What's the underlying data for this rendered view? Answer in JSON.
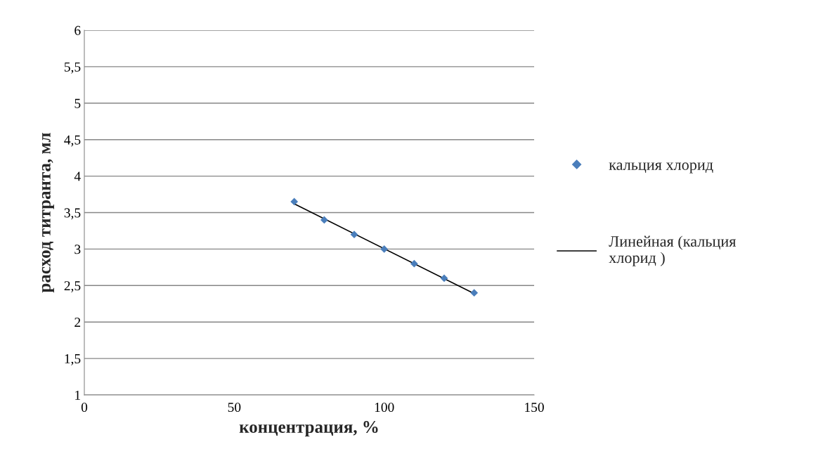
{
  "chart_data": {
    "type": "scatter",
    "xlabel": "концентрация, %",
    "ylabel": "расход титранта, мл",
    "series": [
      {
        "name": "кальция хлорид",
        "color": "#4a7ebb",
        "marker": "diamond",
        "x": [
          70,
          80,
          90,
          100,
          110,
          120,
          130
        ],
        "values": [
          3.65,
          3.4,
          3.2,
          3.0,
          2.8,
          2.6,
          2.4
        ]
      },
      {
        "name": "Линейная (кальция хлорид )",
        "type": "line",
        "color": "#000000",
        "line_style": "solid",
        "x": [
          70,
          130
        ],
        "values": [
          3.62,
          2.39
        ]
      }
    ],
    "xlim": [
      0,
      150
    ],
    "xticks": [
      0,
      50,
      100,
      150
    ],
    "ylim": [
      1,
      6
    ],
    "yticks": [
      {
        "value": 1,
        "label": "1"
      },
      {
        "value": 1.5,
        "label": "1,5"
      },
      {
        "value": 2,
        "label": "2"
      },
      {
        "value": 2.5,
        "label": "2,5"
      },
      {
        "value": 3,
        "label": "3"
      },
      {
        "value": 3.5,
        "label": "3,5"
      },
      {
        "value": 4,
        "label": "4"
      },
      {
        "value": 4.5,
        "label": "4,5"
      },
      {
        "value": 5,
        "label": "5"
      },
      {
        "value": 5.5,
        "label": "5,5"
      },
      {
        "value": 6,
        "label": "6"
      }
    ],
    "grid": "y",
    "legend": "right"
  }
}
